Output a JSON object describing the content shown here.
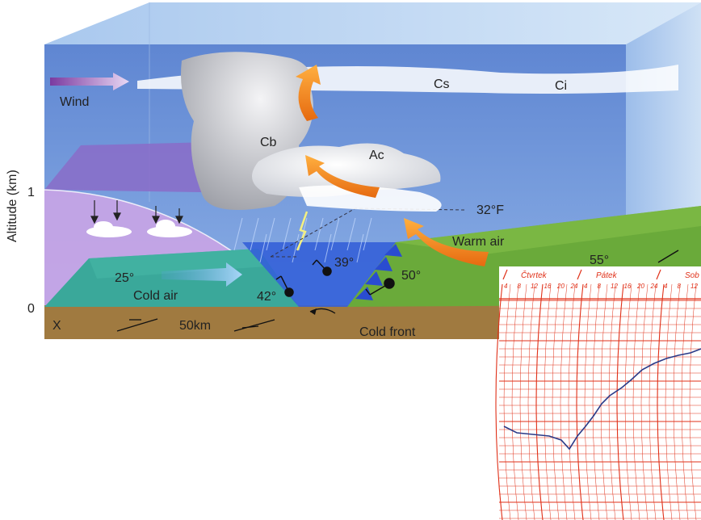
{
  "diagram": {
    "axis_label": "Altitude (km)",
    "axis_ticks": [
      "1",
      "0"
    ],
    "labels": {
      "wind": "Wind",
      "cs": "Cs",
      "ci": "Ci",
      "cb": "Cb",
      "ac": "Ac",
      "freezing": "32°F",
      "warm_air": "Warm air",
      "cold_air": "Cold air",
      "cold_front": "Cold front",
      "x_marker": "X",
      "scale": "50km"
    },
    "temperatures": [
      "25°",
      "42°",
      "39°",
      "50°",
      "55°"
    ]
  },
  "recorder": {
    "days": [
      "Čtvrtek",
      "Pátek",
      "Sob"
    ],
    "hour_ticks": [
      "4",
      "8",
      "12",
      "16",
      "20",
      "24",
      "4",
      "8",
      "12",
      "16",
      "20",
      "24",
      "4",
      "8",
      "12"
    ]
  },
  "colors": {
    "sky": "#6a8fd6",
    "ground": "#a07a40",
    "cold_air": "#3aa89a",
    "warm_ground": "#6aaa3a",
    "arrow": "#f08a1a",
    "grid": "#e03018",
    "trace": "#2a3a88"
  }
}
